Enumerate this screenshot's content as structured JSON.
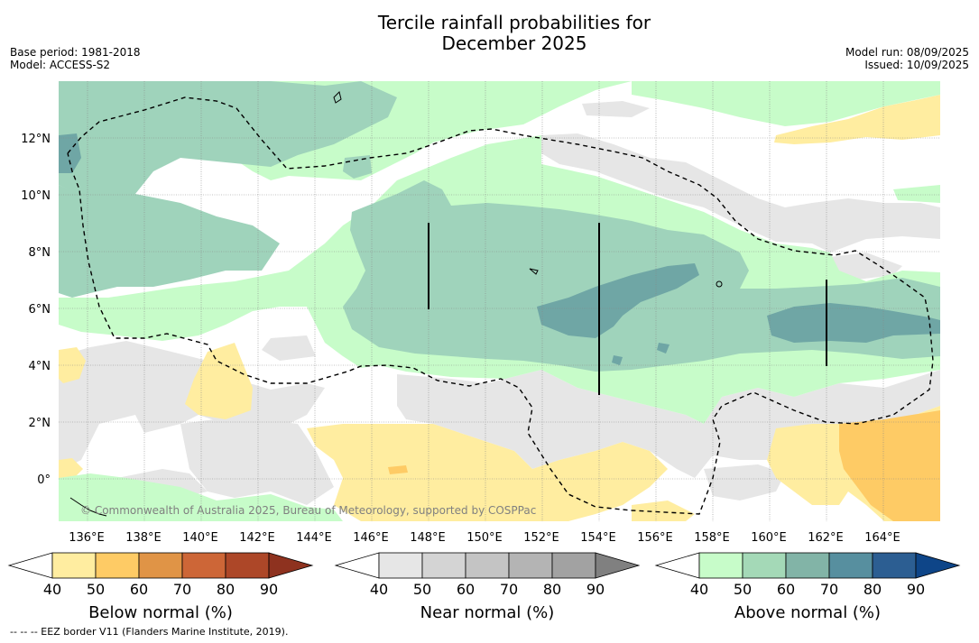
{
  "title_line1": "Tercile rainfall probabilities for",
  "title_line2": "December 2025",
  "base_period": "Base period: 1981-2018",
  "model": "Model: ACCESS-S2",
  "model_run": "Model run: 08/09/2025",
  "issued": "Issued: 10/09/2025",
  "credit": "© Commonwealth of Australia 2025, Bureau of Meteorology, supported by COSPPac",
  "footnote": "--  --  -- EEZ border V11 (Flanders Marine Institute, 2019).",
  "chart_data": {
    "type": "heatmap",
    "description_free": true,
    "x_axis": {
      "range": [
        135,
        166
      ],
      "ticks": [
        136,
        138,
        140,
        142,
        144,
        146,
        148,
        150,
        152,
        154,
        156,
        158,
        160,
        162,
        164
      ],
      "tick_labels": [
        "136°E",
        "138°E",
        "140°E",
        "142°E",
        "144°E",
        "146°E",
        "148°E",
        "150°E",
        "152°E",
        "154°E",
        "156°E",
        "158°E",
        "160°E",
        "162°E",
        "164°E"
      ]
    },
    "y_axis": {
      "range": [
        -1.5,
        14
      ],
      "ticks": [
        0,
        2,
        4,
        6,
        8,
        10,
        12
      ],
      "tick_labels": [
        "0°",
        "2°N",
        "4°N",
        "6°N",
        "8°N",
        "10°N",
        "12°N"
      ]
    },
    "grid": true,
    "colorbars": [
      {
        "name": "Below normal (%)",
        "ticks": [
          "40",
          "50",
          "60",
          "70",
          "80",
          "90"
        ],
        "colors": [
          "#ffffff",
          "#ffeda0",
          "#fecb65",
          "#e09446",
          "#cd6637",
          "#ad4728",
          "#8e321f"
        ]
      },
      {
        "name": "Near normal (%)",
        "ticks": [
          "40",
          "50",
          "60",
          "70",
          "80",
          "90"
        ],
        "colors": [
          "#ffffff",
          "#e6e6e6",
          "#d4d4d4",
          "#c4c4c4",
          "#b4b4b4",
          "#a2a2a2",
          "#808080"
        ]
      },
      {
        "name": "Above normal (%)",
        "ticks": [
          "40",
          "50",
          "60",
          "70",
          "80",
          "90"
        ],
        "colors": [
          "#ffffff",
          "#c7fcc9",
          "#a4d9b7",
          "#82b4a7",
          "#578f9f",
          "#2c5e92",
          "#0e4588"
        ]
      }
    ]
  }
}
